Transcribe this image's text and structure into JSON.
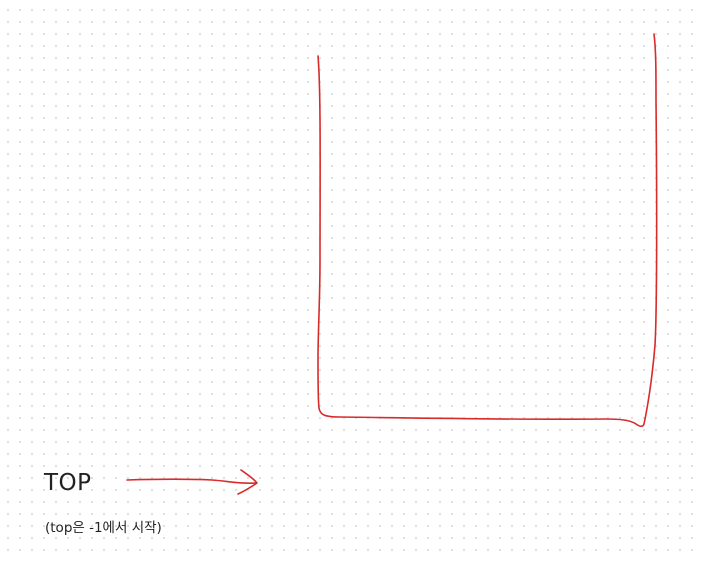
{
  "labels": {
    "top_label": "TOP",
    "note": "(top은 -1에서 시작)"
  },
  "colors": {
    "ink_red": "#d82b2b",
    "text": "#222222",
    "grid_dot": "#dcdcdc",
    "background": "#ffffff"
  }
}
